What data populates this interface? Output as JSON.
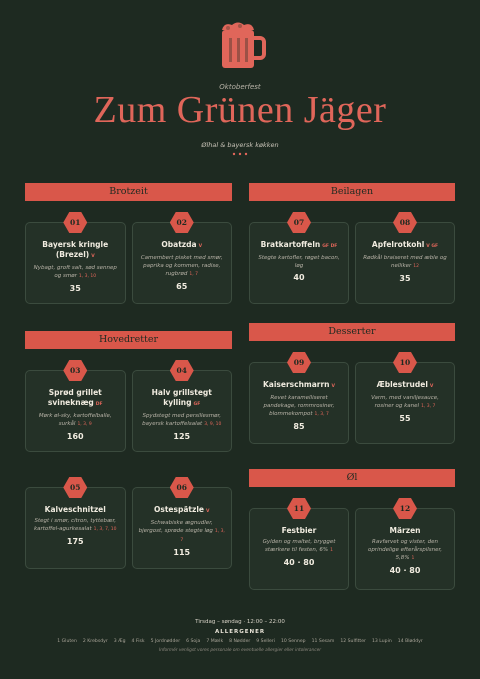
{
  "header": {
    "kicker": "Oktoberfest",
    "title": "Zum Grünen Jäger",
    "subtitle": "Ølhal & bayersk køkken"
  },
  "sections": [
    {
      "name": "Brotzeit",
      "items": [
        {
          "num": "01",
          "name": "Bayersk kringle (Brezel)",
          "tags": "V",
          "desc": "Nybagt, groft salt, sød sennep og smør",
          "allergens": "1, 3, 10",
          "price": 35
        },
        {
          "num": "02",
          "name": "Obatzda",
          "tags": "V",
          "desc": "Camembert pisket med smør, paprika og kommen, radise, rugbrød",
          "allergens": "1, 7",
          "price": 65
        }
      ]
    },
    {
      "name": "Beilagen",
      "items": [
        {
          "num": "07",
          "name": "Bratkartoffeln",
          "tags": "GF DF",
          "desc": "Stegte kartofler, røget bacon, løg",
          "price": 40
        },
        {
          "num": "08",
          "name": "Apfelrotkohl",
          "tags": "V GF",
          "desc": "Rødkål braiseret med æble og nelliker",
          "allergens": "12",
          "price": 35
        }
      ]
    },
    {
      "name": "Hovedretter",
      "items": [
        {
          "num": "03",
          "name": "Sprød grillet svineknæg",
          "tags": "DF",
          "desc": "Mørk øl-sky, kartoffelballe, surkål",
          "allergens": "1, 3, 9",
          "price": 160
        },
        {
          "num": "04",
          "name": "Halv grillstegt kylling",
          "tags": "GF",
          "desc": "Spydstegt med persillesmør, bayersk kartoffelsalat",
          "allergens": "3, 9, 10",
          "price": 125
        },
        {
          "num": "05",
          "name": "Kalveschnitzel",
          "desc": "Stegt i smør, citron, tyttebær, kartoffel-agurkesalat",
          "allergens": "1, 3, 7, 10",
          "price": 175
        },
        {
          "num": "06",
          "name": "Ostespätzle",
          "tags": "V",
          "desc": "Schwabiske ægnudler, bjergost, sprøde stegte løg",
          "allergens": "1, 3, 7",
          "price": 115
        }
      ]
    },
    {
      "name": "Desserter",
      "items": [
        {
          "num": "09",
          "name": "Kaiserschmarrn",
          "tags": "V",
          "desc": "Revet karamelliseret pandekage, rommrosiner, blommekompot",
          "allergens": "1, 3, 7",
          "price": 85
        },
        {
          "num": "10",
          "name": "Æblestrudel",
          "tags": "V",
          "desc": "Varm, med vaniljesauce, rosiner og kanel",
          "allergens": "1, 3, 7",
          "price": 55
        }
      ]
    },
    {
      "name": "Øl",
      "items": [
        {
          "num": "11",
          "name": "Festbier",
          "desc": "Gylden og maltet, brygget stærkere til festen, 6%",
          "allergens": "1",
          "price": "40 · 80"
        },
        {
          "num": "12",
          "name": "Märzen",
          "desc": "Ravfarvet og vister, den oprindelige efterårspilsner, 5,8%",
          "allergens": "1",
          "price": "40 · 80"
        }
      ]
    }
  ],
  "footer": {
    "hours": "Tirsdag – søndag · 12:00 – 22:00",
    "allergens_title": "ALLERGENER",
    "allergens": [
      "1 Gluten",
      "2 Krebsdyr",
      "3 Æg",
      "4 Fisk",
      "5 Jordnødder",
      "6 Soja",
      "7 Mælk",
      "8 Nødder",
      "9 Selleri",
      "10 Sennep",
      "11 Sesam",
      "12 Sulfitter",
      "13 Lupin",
      "14 Bløddyr"
    ],
    "note": "Informér venligst vores personale om eventuelle allergier eller intolerancer"
  }
}
